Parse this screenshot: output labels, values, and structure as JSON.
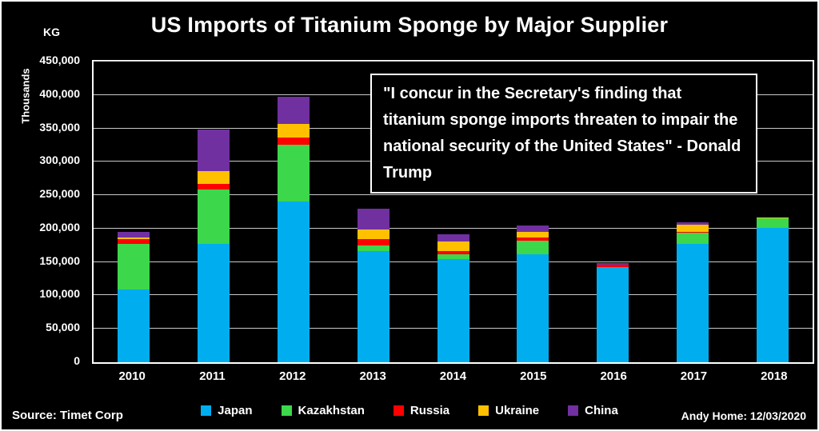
{
  "title": "US Imports of Titanium Sponge by Major Supplier",
  "y_axis": {
    "unit": "KG",
    "label": "Thousands",
    "ticks": [
      "0",
      "50,000",
      "100,000",
      "150,000",
      "200,000",
      "250,000",
      "300,000",
      "350,000",
      "400,000",
      "450,000"
    ]
  },
  "chart_data": {
    "type": "bar",
    "stacked": true,
    "title": "US Imports of Titanium Sponge by Major Supplier",
    "ylabel": "Thousands KG",
    "xlabel": "",
    "ylim": [
      0,
      450000
    ],
    "y_tick_step": 50000,
    "grid": true,
    "legend_position": "bottom",
    "categories": [
      "2010",
      "2011",
      "2012",
      "2013",
      "2014",
      "2015",
      "2016",
      "2017",
      "2018"
    ],
    "series": [
      {
        "name": "Japan",
        "color": "#00AEEF",
        "values": [
          109000,
          177000,
          241000,
          166000,
          154000,
          161000,
          142000,
          177000,
          201000
        ]
      },
      {
        "name": "Kazakhstan",
        "color": "#3CD74B",
        "values": [
          68000,
          81000,
          85000,
          9000,
          8000,
          21000,
          0,
          17000,
          14000
        ]
      },
      {
        "name": "Russia",
        "color": "#FF0000",
        "values": [
          7000,
          9000,
          10000,
          9000,
          4000,
          5000,
          4000,
          1000,
          0
        ]
      },
      {
        "name": "Ukraine",
        "color": "#FFC000",
        "values": [
          3000,
          19000,
          21000,
          15000,
          15000,
          8000,
          0,
          11000,
          2000
        ]
      },
      {
        "name": "China",
        "color": "#7030A0",
        "values": [
          8000,
          62000,
          40000,
          31000,
          11000,
          10000,
          3000,
          3000,
          0
        ]
      }
    ]
  },
  "annotation": {
    "quote": "\"I concur in the Secretary's finding that titanium sponge imports threaten to impair the national security of the United States\" - Donald Trump"
  },
  "footer": {
    "source": "Source: Timet Corp",
    "credit": "Andy Home: 12/03/2020"
  }
}
